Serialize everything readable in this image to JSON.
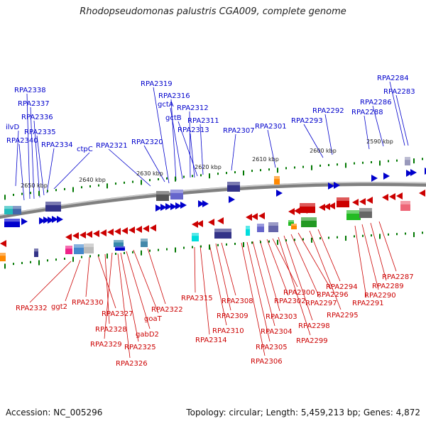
{
  "title": "Rhodopseudomonas palustris CGA009, complete genome",
  "accession": "Accession: NC_005296",
  "topology": "Topology: circular; Length: 5,459,213 bp; Genes: 4,872",
  "ticks": [
    "2650 kbp",
    "2640 kbp",
    "2630 kbp",
    "2620 kbp",
    "2610 kbp",
    "2600 kbp",
    "2590 kbp"
  ],
  "colors": {
    "forward_strand": "#0000cc",
    "reverse_strand": "#cc0000",
    "backbone": "#808080",
    "tick": "#007700",
    "label_line_forward": "#0000cc",
    "label_line_reverse": "#cc0000"
  },
  "genes_top": [
    "RPA2338",
    "RPA2337",
    "RPA2336",
    "ilvD",
    "RPA2335",
    "RPA2340",
    "RPA2334",
    "ctpC",
    "RPA2321",
    "RPA2319",
    "RPA2316",
    "gctA",
    "RPA2312",
    "gctB",
    "RPA2311",
    "RPA2313",
    "RPA2320",
    "RPA2307",
    "RPA2301",
    "RPA2293",
    "RPA2292",
    "RPA2288",
    "RPA2286",
    "RPA2284",
    "RPA2283"
  ],
  "genes_bottom": [
    "RPA2332",
    "ggt2",
    "RPA2330",
    "RPA2327",
    "RPA2328",
    "RPA2329",
    "goaT",
    "gabD2",
    "RPA2325",
    "RPA2326",
    "RPA2322",
    "RPA2315",
    "RPA2314",
    "RPA2310",
    "RPA2309",
    "RPA2308",
    "RPA2303",
    "RPA2304",
    "RPA2305",
    "RPA2306",
    "RPA2302",
    "RPA2300",
    "RPA2298",
    "RPA2299",
    "RPA2297",
    "RPA2296",
    "RPA2295",
    "RPA2294",
    "RPA2291",
    "RPA2290",
    "RPA2289",
    "RPA2287"
  ]
}
